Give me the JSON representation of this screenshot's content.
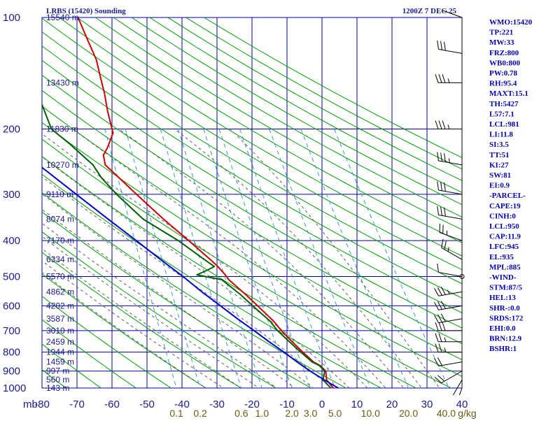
{
  "header": {
    "title": "LRBS (15420) Sounding",
    "datetime": "1200Z  7 DEC 25"
  },
  "colors": {
    "grid": "#0000a0",
    "isotherm": "#0000a0",
    "dry_adiabat": "#00a000",
    "moist_adiabat": "#606060",
    "mixing_ratio": "#3399dd",
    "temperature": "#cc0000",
    "dewpoint": "#006000",
    "parcel": "#0000cc",
    "wind": "#000000",
    "stats": "#0000b0",
    "mixing_label": "#6b5a10"
  },
  "chart_data": {
    "type": "line",
    "title": "LRBS (15420) Sounding",
    "chart_kind": "skew-T log-p",
    "xlabel": "",
    "ylabel": "mb",
    "pressure_unit_label": "mb",
    "y_scale": "log",
    "ylim": [
      1000,
      100
    ],
    "pressure_levels": [
      100,
      200,
      300,
      400,
      500,
      600,
      700,
      800,
      900,
      1000
    ],
    "temperature_ticks": [
      "-80",
      "-70",
      "-60",
      "-50",
      "-40",
      "-30",
      "-20",
      "-10",
      "0",
      "10",
      "20",
      "30",
      "40"
    ],
    "mixing_ratio_labels": [
      "0.1",
      "0.2",
      "0.6",
      "1.0",
      "2.0",
      "3.0",
      "5.0",
      "10.0",
      "20.0",
      "40.0",
      "g/kg"
    ],
    "height_labels": [
      {
        "p": 100,
        "text": "15540 m"
      },
      {
        "p": 150,
        "text": "13430 m"
      },
      {
        "p": 200,
        "text": "11830 m"
      },
      {
        "p": 250,
        "text": "10270 m"
      },
      {
        "p": 300,
        "text": "9110 m"
      },
      {
        "p": 350,
        "text": "8074 m"
      },
      {
        "p": 400,
        "text": "7170 m"
      },
      {
        "p": 450,
        "text": "6334 m"
      },
      {
        "p": 500,
        "text": "5570 m"
      },
      {
        "p": 550,
        "text": "4862 m"
      },
      {
        "p": 600,
        "text": "4202 m"
      },
      {
        "p": 650,
        "text": "3587 m"
      },
      {
        "p": 700,
        "text": "3010 m"
      },
      {
        "p": 750,
        "text": "2459 m"
      },
      {
        "p": 800,
        "text": "1944 m"
      },
      {
        "p": 850,
        "text": "1459 m"
      },
      {
        "p": 900,
        "text": "997 m"
      },
      {
        "p": 950,
        "text": "560 m"
      },
      {
        "p": 1000,
        "text": "143 m"
      }
    ],
    "series": [
      {
        "key": "temperature",
        "points": [
          {
            "p": 1012,
            "t": 5.0
          },
          {
            "p": 1000,
            "t": 3.2
          },
          {
            "p": 950,
            "t": 1.5
          },
          {
            "p": 900,
            "t": 1.5
          },
          {
            "p": 870,
            "t": 0.0
          },
          {
            "p": 850,
            "t": -1.8
          },
          {
            "p": 800,
            "t": -4.6
          },
          {
            "p": 750,
            "t": -7.4
          },
          {
            "p": 700,
            "t": -10.2
          },
          {
            "p": 660,
            "t": -12.2
          },
          {
            "p": 600,
            "t": -16.4
          },
          {
            "p": 560,
            "t": -19.5
          },
          {
            "p": 510,
            "t": -24.0
          },
          {
            "p": 495,
            "t": -24.9
          },
          {
            "p": 470,
            "t": -26.8
          },
          {
            "p": 450,
            "t": -28.8
          },
          {
            "p": 400,
            "t": -34.5
          },
          {
            "p": 350,
            "t": -41.2
          },
          {
            "p": 300,
            "t": -48.3
          },
          {
            "p": 270,
            "t": -53.0
          },
          {
            "p": 250,
            "t": -56.5
          },
          {
            "p": 235,
            "t": -56.8
          },
          {
            "p": 225,
            "t": -55.5
          },
          {
            "p": 205,
            "t": -53.5
          },
          {
            "p": 180,
            "t": -54.5
          },
          {
            "p": 160,
            "t": -55.0
          },
          {
            "p": 150,
            "t": -55.5
          },
          {
            "p": 130,
            "t": -56.5
          },
          {
            "p": 115,
            "t": -58.5
          },
          {
            "p": 100,
            "t": -60.7
          }
        ]
      },
      {
        "key": "dewpoint",
        "points": [
          {
            "p": 1012,
            "t": 3.6
          },
          {
            "p": 1000,
            "t": 2.5
          },
          {
            "p": 950,
            "t": 0.5
          },
          {
            "p": 900,
            "t": 1.2
          },
          {
            "p": 870,
            "t": -0.2
          },
          {
            "p": 850,
            "t": -2.2
          },
          {
            "p": 800,
            "t": -5.2
          },
          {
            "p": 750,
            "t": -8.2
          },
          {
            "p": 700,
            "t": -11.3
          },
          {
            "p": 660,
            "t": -13.2
          },
          {
            "p": 600,
            "t": -17.8
          },
          {
            "p": 560,
            "t": -21.0
          },
          {
            "p": 510,
            "t": -26.0
          },
          {
            "p": 495,
            "t": -33.0
          },
          {
            "p": 480,
            "t": -29.8
          },
          {
            "p": 470,
            "t": -27.8
          },
          {
            "p": 450,
            "t": -30.5
          },
          {
            "p": 400,
            "t": -37.5
          },
          {
            "p": 350,
            "t": -47.0
          },
          {
            "p": 300,
            "t": -54.0
          },
          {
            "p": 270,
            "t": -58.0
          },
          {
            "p": 250,
            "t": -60.0
          },
          {
            "p": 220,
            "t": -66.0
          },
          {
            "p": 200,
            "t": -71.0
          },
          {
            "p": 150,
            "t": -75.0
          },
          {
            "p": 130,
            "t": -77.5
          },
          {
            "p": 115,
            "t": -80.0
          },
          {
            "p": 100,
            "t": -80.8
          }
        ]
      },
      {
        "key": "parcel",
        "points": [
          {
            "p": 1012,
            "t": 5.5
          },
          {
            "p": 950,
            "t": 0.8
          },
          {
            "p": 900,
            "t": -3.0
          },
          {
            "p": 850,
            "t": -6.5
          },
          {
            "p": 800,
            "t": -10.0
          },
          {
            "p": 750,
            "t": -14.0
          },
          {
            "p": 700,
            "t": -18.0
          },
          {
            "p": 650,
            "t": -22.5
          },
          {
            "p": 600,
            "t": -27.0
          },
          {
            "p": 550,
            "t": -32.0
          },
          {
            "p": 500,
            "t": -37.0
          },
          {
            "p": 450,
            "t": -43.0
          },
          {
            "p": 400,
            "t": -49.5
          },
          {
            "p": 350,
            "t": -57.0
          },
          {
            "p": 300,
            "t": -65.5
          },
          {
            "p": 250,
            "t": -75.5
          },
          {
            "p": 240,
            "t": -80.0
          }
        ]
      }
    ],
    "wind_profile": [
      {
        "p": 1000,
        "dir": 200,
        "spd": 10
      },
      {
        "p": 950,
        "dir": 210,
        "spd": 15
      },
      {
        "p": 900,
        "dir": 240,
        "spd": 20
      },
      {
        "p": 850,
        "dir": 260,
        "spd": 20
      },
      {
        "p": 800,
        "dir": 270,
        "spd": 25
      },
      {
        "p": 750,
        "dir": 270,
        "spd": 25
      },
      {
        "p": 700,
        "dir": 270,
        "spd": 30
      },
      {
        "p": 650,
        "dir": 260,
        "spd": 30
      },
      {
        "p": 600,
        "dir": 260,
        "spd": 30
      },
      {
        "p": 550,
        "dir": 260,
        "spd": 35
      },
      {
        "p": 500,
        "dir": 280,
        "spd": 10
      },
      {
        "p": 450,
        "dir": 300,
        "spd": 25
      },
      {
        "p": 400,
        "dir": 290,
        "spd": 25
      },
      {
        "p": 350,
        "dir": 280,
        "spd": 30
      },
      {
        "p": 300,
        "dir": 280,
        "spd": 30
      },
      {
        "p": 250,
        "dir": 280,
        "spd": 35
      },
      {
        "p": 200,
        "dir": 270,
        "spd": 35
      },
      {
        "p": 150,
        "dir": 270,
        "spd": 35
      },
      {
        "p": 125,
        "dir": 280,
        "spd": 30
      },
      {
        "p": 100,
        "dir": 290,
        "spd": 30
      }
    ]
  },
  "stats": [
    "WMO:15420",
    "TP:221",
    "MW:33",
    "FRZ:800",
    "WB0:800",
    "PW:0.78",
    "RH:95.4",
    "MAXT:15.1",
    "TH:5427",
    "L57:7.1",
    "LCL:981",
    "LI:11.8",
    "SI:3.5",
    "TT:51",
    "KI:27",
    "SW:81",
    "EI:0.9",
    "-PARCEL-",
    "CAPE:19",
    "CINH:0",
    "LCL:950",
    "CAP:11.9",
    "LFC:945",
    "EL:935",
    "MPL:885",
    "-WIND-",
    "STM:87/5",
    "HEL:13",
    "SHR-:0.0",
    "SRDS:172",
    "EHI:0.0",
    "BRN:12.9",
    "BSHR:1"
  ]
}
